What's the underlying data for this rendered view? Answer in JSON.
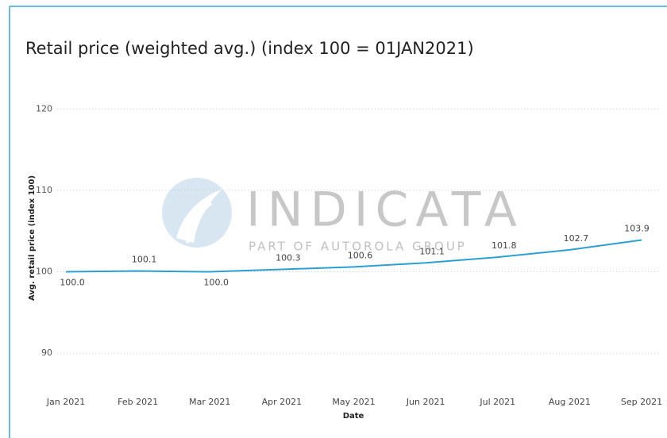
{
  "chart_data": {
    "type": "line",
    "title": "Retail price (weighted avg.) (index 100 = 01JAN2021)",
    "x_label": "Date",
    "y_label": "Avg. retail price (index 100)",
    "categories": [
      "Jan 2021",
      "Feb 2021",
      "Mar 2021",
      "Apr 2021",
      "May 2021",
      "Jun 2021",
      "Jul 2021",
      "Aug 2021",
      "Sep 2021"
    ],
    "series": [
      {
        "name": "Avg. retail price (index 100)",
        "color": "#2b9fd4",
        "values": [
          100.0,
          100.1,
          100.0,
          100.3,
          100.6,
          101.1,
          101.8,
          102.7,
          103.9
        ],
        "value_labels": [
          "100.0",
          "100.1",
          "100.0",
          "100.3",
          "100.6",
          "101.1",
          "101.8",
          "102.7",
          "103.9"
        ]
      }
    ],
    "ylim": [
      87,
      121
    ],
    "yticks": [
      90,
      100,
      110,
      120
    ],
    "grid": true,
    "watermark": {
      "name": "INDICATA",
      "tagline": "PART OF AUTOROLA GROUP"
    }
  }
}
